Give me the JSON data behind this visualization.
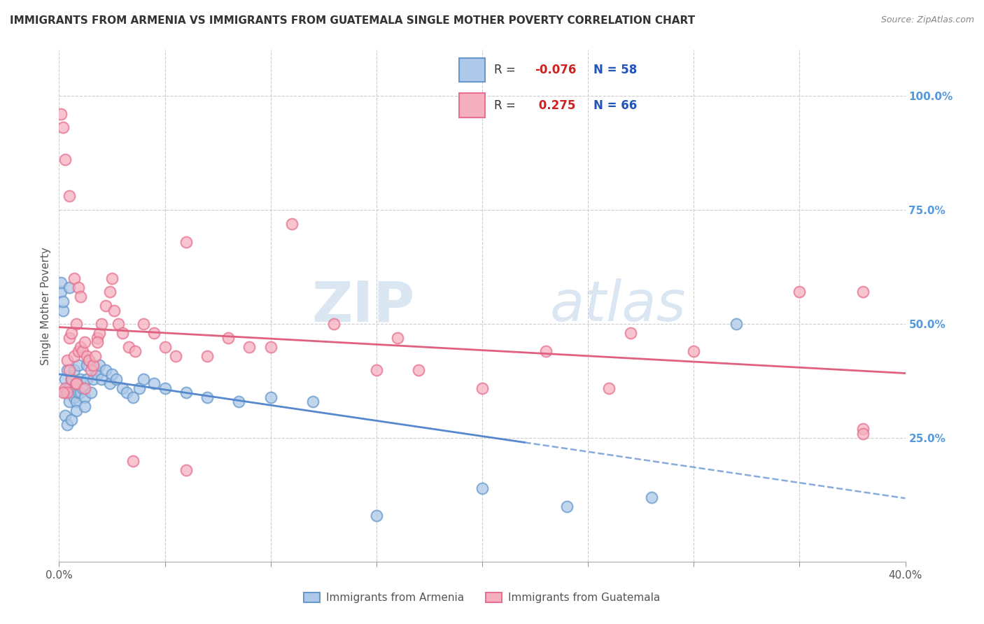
{
  "title": "IMMIGRANTS FROM ARMENIA VS IMMIGRANTS FROM GUATEMALA SINGLE MOTHER POVERTY CORRELATION CHART",
  "source": "Source: ZipAtlas.com",
  "ylabel": "Single Mother Poverty",
  "right_yticks": [
    "100.0%",
    "75.0%",
    "50.0%",
    "25.0%"
  ],
  "right_ytick_vals": [
    1.0,
    0.75,
    0.5,
    0.25
  ],
  "legend_r_armenia": "-0.076",
  "legend_n_armenia": "58",
  "legend_r_guatemala": "0.275",
  "legend_n_guatemala": "66",
  "armenia_color": "#adc8e8",
  "guatemala_color": "#f5b0c0",
  "armenia_edge_color": "#6699cc",
  "guatemala_edge_color": "#e87090",
  "armenia_line_color": "#5588cc",
  "guatemala_line_color": "#e06080",
  "watermark": "ZIPAtlas",
  "xlim": [
    0.0,
    0.4
  ],
  "ylim": [
    -0.02,
    1.1
  ],
  "armenia_x": [
    0.001,
    0.001,
    0.002,
    0.002,
    0.003,
    0.003,
    0.004,
    0.004,
    0.005,
    0.005,
    0.005,
    0.006,
    0.006,
    0.007,
    0.007,
    0.008,
    0.008,
    0.009,
    0.009,
    0.01,
    0.01,
    0.011,
    0.012,
    0.013,
    0.013,
    0.014,
    0.015,
    0.016,
    0.017,
    0.018,
    0.019,
    0.02,
    0.022,
    0.024,
    0.025,
    0.027,
    0.03,
    0.032,
    0.035,
    0.038,
    0.04,
    0.045,
    0.05,
    0.06,
    0.07,
    0.085,
    0.1,
    0.12,
    0.15,
    0.2,
    0.24,
    0.28,
    0.32,
    0.003,
    0.004,
    0.006,
    0.008,
    0.012
  ],
  "armenia_y": [
    0.57,
    0.59,
    0.53,
    0.55,
    0.35,
    0.38,
    0.36,
    0.4,
    0.33,
    0.36,
    0.58,
    0.35,
    0.38,
    0.34,
    0.4,
    0.33,
    0.37,
    0.35,
    0.41,
    0.35,
    0.38,
    0.36,
    0.34,
    0.38,
    0.41,
    0.42,
    0.35,
    0.38,
    0.4,
    0.39,
    0.41,
    0.38,
    0.4,
    0.37,
    0.39,
    0.38,
    0.36,
    0.35,
    0.34,
    0.36,
    0.38,
    0.37,
    0.36,
    0.35,
    0.34,
    0.33,
    0.34,
    0.33,
    0.08,
    0.14,
    0.1,
    0.12,
    0.5,
    0.3,
    0.28,
    0.29,
    0.31,
    0.32
  ],
  "guatemala_x": [
    0.001,
    0.002,
    0.003,
    0.003,
    0.004,
    0.004,
    0.005,
    0.005,
    0.006,
    0.006,
    0.007,
    0.007,
    0.008,
    0.008,
    0.009,
    0.009,
    0.01,
    0.01,
    0.011,
    0.012,
    0.013,
    0.014,
    0.015,
    0.016,
    0.017,
    0.018,
    0.019,
    0.02,
    0.022,
    0.024,
    0.026,
    0.028,
    0.03,
    0.033,
    0.036,
    0.04,
    0.045,
    0.05,
    0.055,
    0.06,
    0.07,
    0.08,
    0.09,
    0.1,
    0.11,
    0.13,
    0.15,
    0.17,
    0.2,
    0.23,
    0.26,
    0.3,
    0.35,
    0.38,
    0.002,
    0.005,
    0.008,
    0.012,
    0.018,
    0.025,
    0.035,
    0.06,
    0.16,
    0.27,
    0.38,
    0.38
  ],
  "guatemala_y": [
    0.96,
    0.93,
    0.36,
    0.86,
    0.35,
    0.42,
    0.47,
    0.78,
    0.38,
    0.48,
    0.43,
    0.6,
    0.37,
    0.5,
    0.44,
    0.58,
    0.45,
    0.56,
    0.44,
    0.46,
    0.43,
    0.42,
    0.4,
    0.41,
    0.43,
    0.47,
    0.48,
    0.5,
    0.54,
    0.57,
    0.53,
    0.5,
    0.48,
    0.45,
    0.44,
    0.5,
    0.48,
    0.45,
    0.43,
    0.68,
    0.43,
    0.47,
    0.45,
    0.45,
    0.72,
    0.5,
    0.4,
    0.4,
    0.36,
    0.44,
    0.36,
    0.44,
    0.57,
    0.27,
    0.35,
    0.4,
    0.37,
    0.36,
    0.46,
    0.6,
    0.2,
    0.18,
    0.47,
    0.48,
    0.57,
    0.26
  ]
}
